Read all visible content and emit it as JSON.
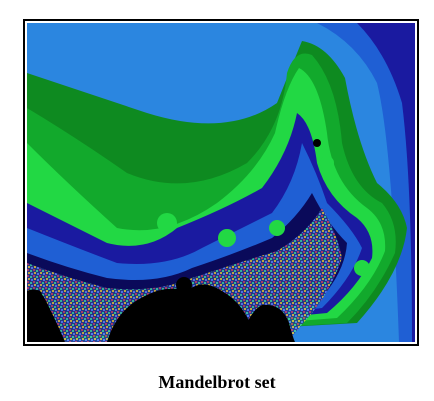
{
  "figure": {
    "caption": "Mandelbrot set",
    "colors": {
      "deep_blue": "#1a1aa0",
      "medium_blue": "#1f5fd4",
      "light_blue": "#2b86e0",
      "dark_green": "#0e8a20",
      "green": "#12a92c",
      "bright_green": "#22d844",
      "navy": "#0a0a5a",
      "set_black": "#000000"
    }
  }
}
